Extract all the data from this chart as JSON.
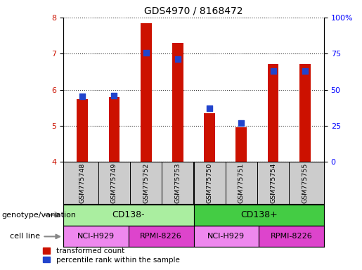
{
  "title": "GDS4970 / 8168472",
  "samples": [
    "GSM775748",
    "GSM775749",
    "GSM775752",
    "GSM775753",
    "GSM775750",
    "GSM775751",
    "GSM775754",
    "GSM775755"
  ],
  "red_values": [
    5.75,
    5.8,
    7.85,
    7.3,
    5.35,
    4.97,
    6.72,
    6.72
  ],
  "blue_values": [
    5.82,
    5.84,
    7.02,
    6.85,
    5.48,
    5.08,
    6.51,
    6.52
  ],
  "ylim_left": [
    4,
    8
  ],
  "ylim_right": [
    0,
    100
  ],
  "yticks_left": [
    4,
    5,
    6,
    7,
    8
  ],
  "yticks_right": [
    0,
    25,
    50,
    75,
    100
  ],
  "yticklabels_right": [
    "0",
    "25",
    "50",
    "75",
    "100%"
  ],
  "bar_color": "#cc1100",
  "dot_color": "#2244cc",
  "plot_bg": "#ffffff",
  "genotype_groups": [
    {
      "label": "CD138-",
      "start": 0,
      "end": 4,
      "color": "#aaeea0"
    },
    {
      "label": "CD138+",
      "start": 4,
      "end": 8,
      "color": "#44cc44"
    }
  ],
  "cell_line_groups": [
    {
      "label": "NCI-H929",
      "start": 0,
      "end": 2,
      "color": "#ee88ee"
    },
    {
      "label": "RPMI-8226",
      "start": 2,
      "end": 4,
      "color": "#dd44cc"
    },
    {
      "label": "NCI-H929",
      "start": 4,
      "end": 6,
      "color": "#ee88ee"
    },
    {
      "label": "RPMI-8226",
      "start": 6,
      "end": 8,
      "color": "#dd44cc"
    }
  ],
  "legend_red": "transformed count",
  "legend_blue": "percentile rank within the sample",
  "label_genotype": "genotype/variation",
  "label_cellline": "cell line",
  "bar_width": 0.35,
  "dot_size": 40,
  "sample_bg": "#cccccc",
  "sample_sep_color": "#888888"
}
